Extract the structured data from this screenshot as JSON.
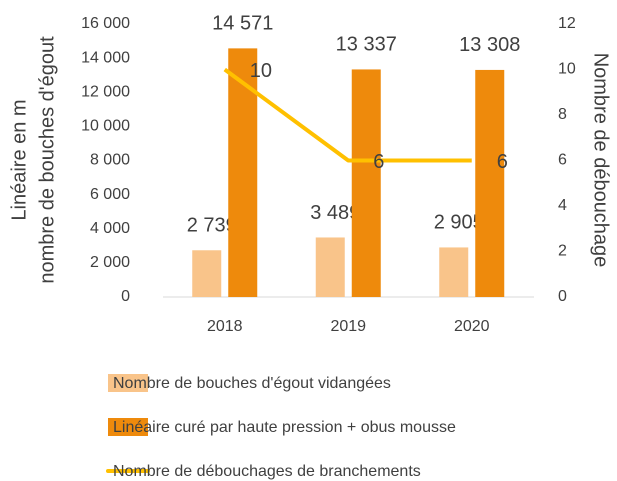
{
  "chart_data": {
    "type": "bar_line",
    "ylabel": [
      "Linéaire en m",
      "nombre de bouches d'égout"
    ],
    "y2label": "Nombre de débouchage",
    "categories": [
      "2018",
      "2019",
      "2020"
    ],
    "series": [
      {
        "name": "Nombre de bouches d'égout vidangées",
        "type": "bar",
        "color": "#f9c48a",
        "values": [
          2739,
          3489,
          2905
        ],
        "value_labels": [
          "2 739",
          "3 489",
          "2 905"
        ]
      },
      {
        "name": "Linéaire curé par haute pression + obus mousse",
        "type": "bar",
        "color": "#ee8a0c",
        "values": [
          14571,
          13337,
          13308
        ],
        "value_labels": [
          "14 571",
          "13 337",
          "13 308"
        ]
      },
      {
        "name": "Nombre de débouchages de branchements",
        "type": "line",
        "axis": "y2",
        "color": "#ffc000",
        "values": [
          10,
          6,
          6
        ]
      }
    ],
    "ylim": [
      0,
      16000
    ],
    "yticks": [
      0,
      {
        "value": 2000,
        "label": "2 000"
      },
      {
        "value": 4000,
        "label": "4 000"
      },
      {
        "value": 6000,
        "label": "6 000"
      },
      {
        "value": 8000,
        "label": "8 000"
      },
      {
        "value": 10000,
        "label": "10 000"
      },
      {
        "value": 12000,
        "label": "12 000"
      },
      {
        "value": 14000,
        "label": "14 000"
      },
      {
        "value": 16000,
        "label": "16 000"
      }
    ],
    "y2lim": [
      0,
      12
    ],
    "y2ticks": [
      0,
      2,
      4,
      6,
      8,
      10,
      12
    ],
    "legend": "bottom"
  }
}
